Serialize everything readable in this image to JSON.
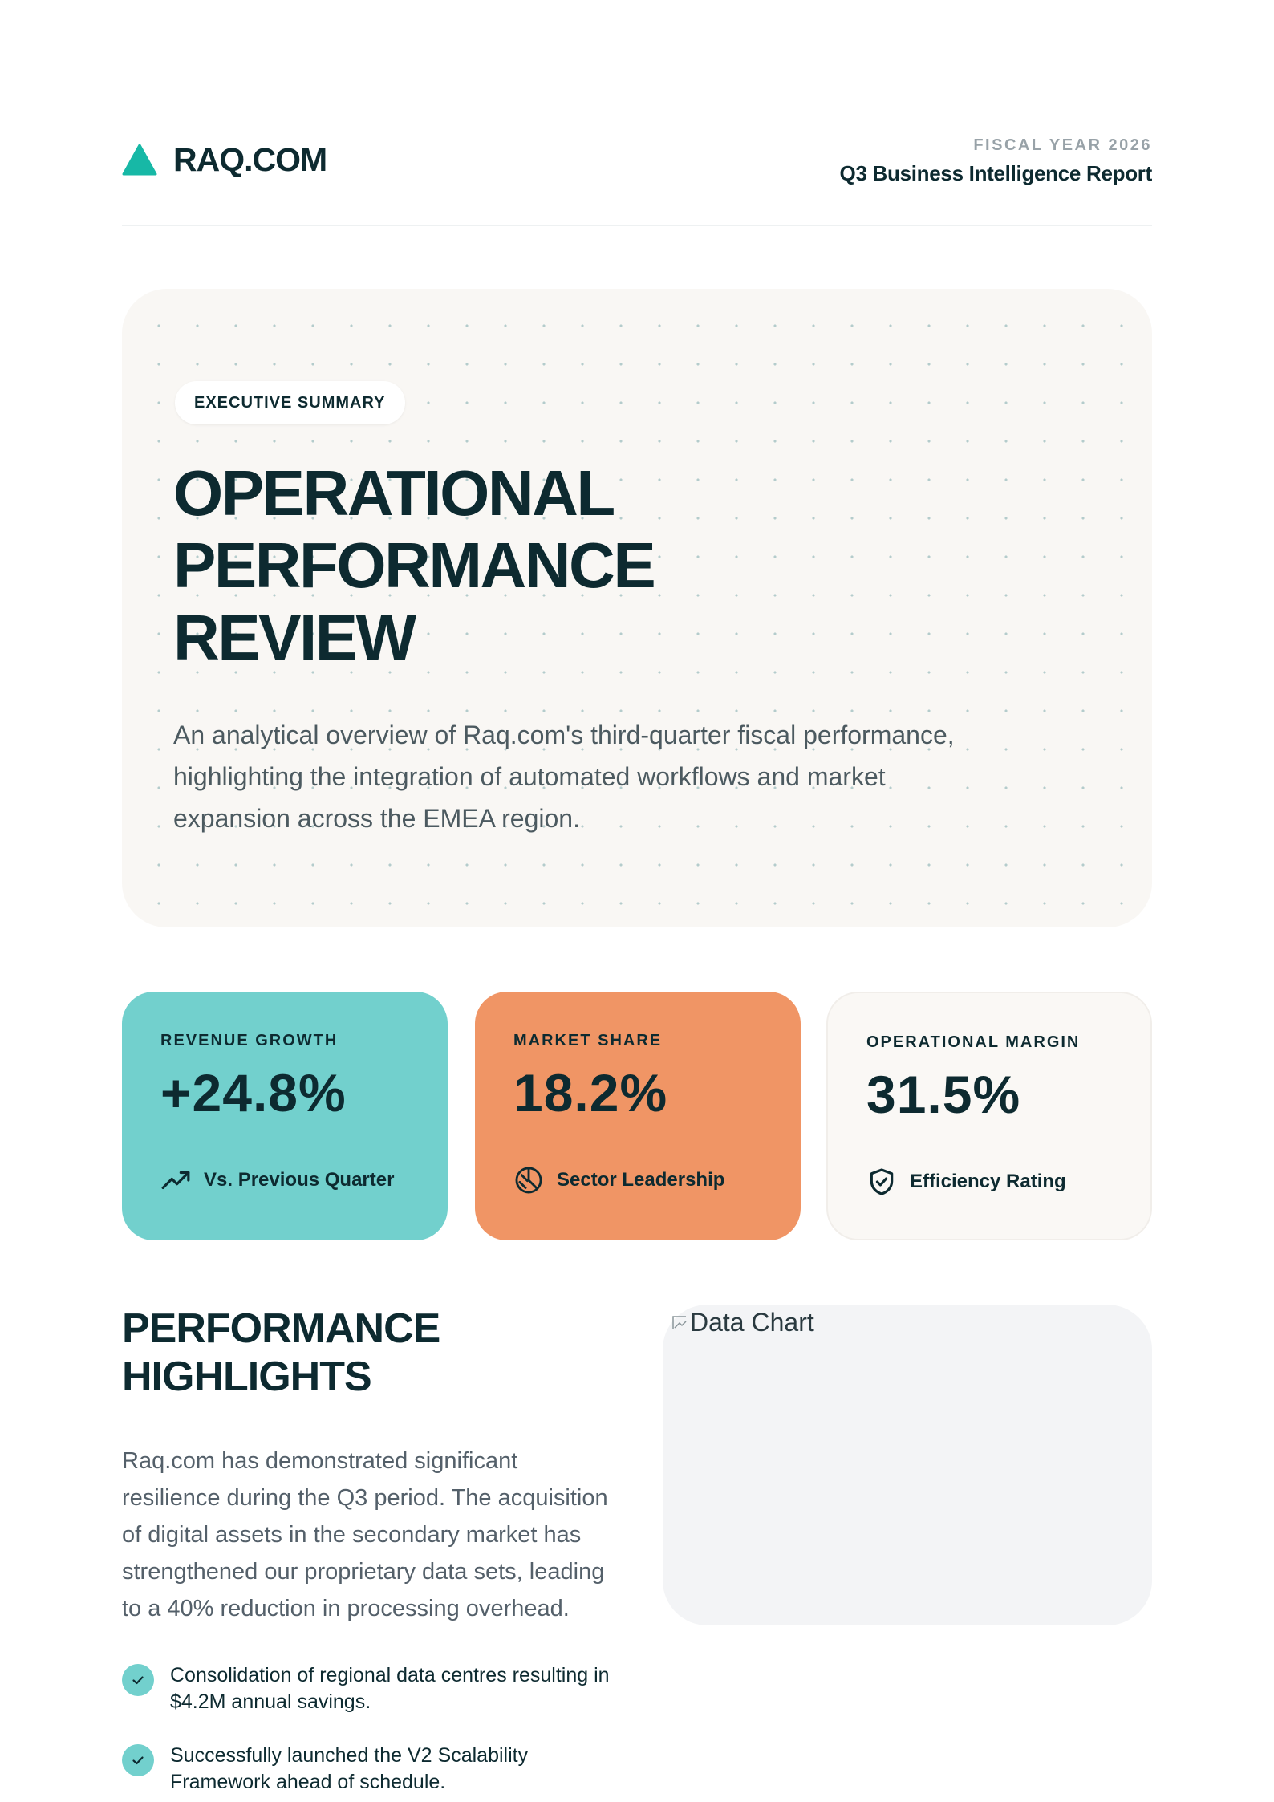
{
  "brand": {
    "name": "RAQ.COM",
    "logo_icon": "triangle-logo-icon",
    "accent": "#17b8a6"
  },
  "header": {
    "fiscal_label": "FISCAL YEAR 2026",
    "report_title": "Q3 Business Intelligence Report"
  },
  "hero": {
    "badge": "EXECUTIVE SUMMARY",
    "title_lines": [
      "OPERATIONAL",
      "PERFORMANCE",
      "REVIEW"
    ],
    "description": "An analytical overview of Raq.com's third-quarter fiscal performance, highlighting the integration of automated workflows and market expansion across the EMEA region."
  },
  "stats": [
    {
      "label": "REVENUE GROWTH",
      "value": "+24.8%",
      "footnote": "Vs. Previous Quarter",
      "icon": "trending-up-icon",
      "color": "#72d0cd"
    },
    {
      "label": "MARKET SHARE",
      "value": "18.2%",
      "footnote": "Sector Leadership",
      "icon": "pie-chart-icon",
      "color": "#f09565"
    },
    {
      "label": "OPERATIONAL MARGIN",
      "value": "31.5%",
      "footnote": "Efficiency Rating",
      "icon": "shield-check-icon",
      "color": "#faf8f5"
    }
  ],
  "highlights": {
    "title_lines": [
      "PERFORMANCE",
      "HIGHLIGHTS"
    ],
    "body": "Raq.com has demonstrated significant resilience during the Q3 period. The acquisition of digital assets in the secondary market has strengthened our proprietary data sets, leading to a 40% reduction in processing overhead.",
    "items": [
      "Consolidation of regional data centres resulting in $4.2M annual savings.",
      "Successfully launched the V2 Scalability Framework ahead of schedule."
    ]
  },
  "chart_image": {
    "alt": "Data Chart",
    "icon": "broken-image-icon"
  }
}
